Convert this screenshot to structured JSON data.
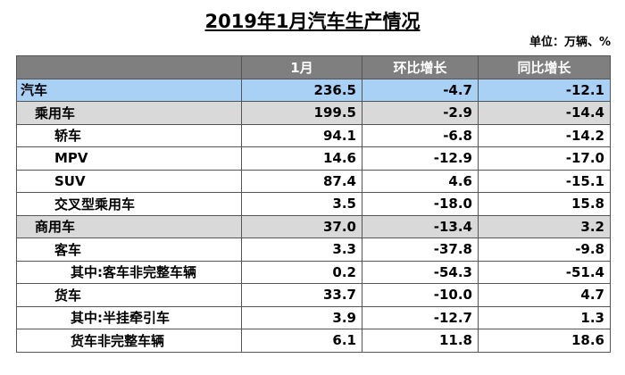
{
  "title": "2019年1月汽车生产情况",
  "unit": "单位：万辆、%",
  "table": {
    "header": [
      "1月",
      "环比增长",
      "同比增长"
    ],
    "rows": [
      [
        "汽车",
        "236.5",
        "-4.7",
        "-12.1"
      ],
      [
        "乘用车",
        "199.5",
        "-2.9",
        "-14.4"
      ],
      [
        "轿车",
        "94.1",
        "-6.8",
        "-14.2"
      ],
      [
        "MPV",
        "14.6",
        "-12.9",
        "-17.0"
      ],
      [
        "SUV",
        "87.4",
        "4.6",
        "-15.1"
      ],
      [
        "交叉型乘用车",
        "3.5",
        "-18.0",
        "15.8"
      ],
      [
        "商用车",
        "37.0",
        "-13.4",
        "3.2"
      ],
      [
        "客车",
        "3.3",
        "-37.8",
        "-9.8"
      ],
      [
        "其中:客车非完整车辆",
        "0.2",
        "-54.3",
        "-51.4"
      ],
      [
        "货车",
        "33.7",
        "-10.0",
        "4.7"
      ],
      [
        "其中:半挂牵引车",
        "3.9",
        "-12.7",
        "1.3"
      ],
      [
        "货车非完整车辆",
        "6.1",
        "11.8",
        "18.6"
      ]
    ]
  }
}
